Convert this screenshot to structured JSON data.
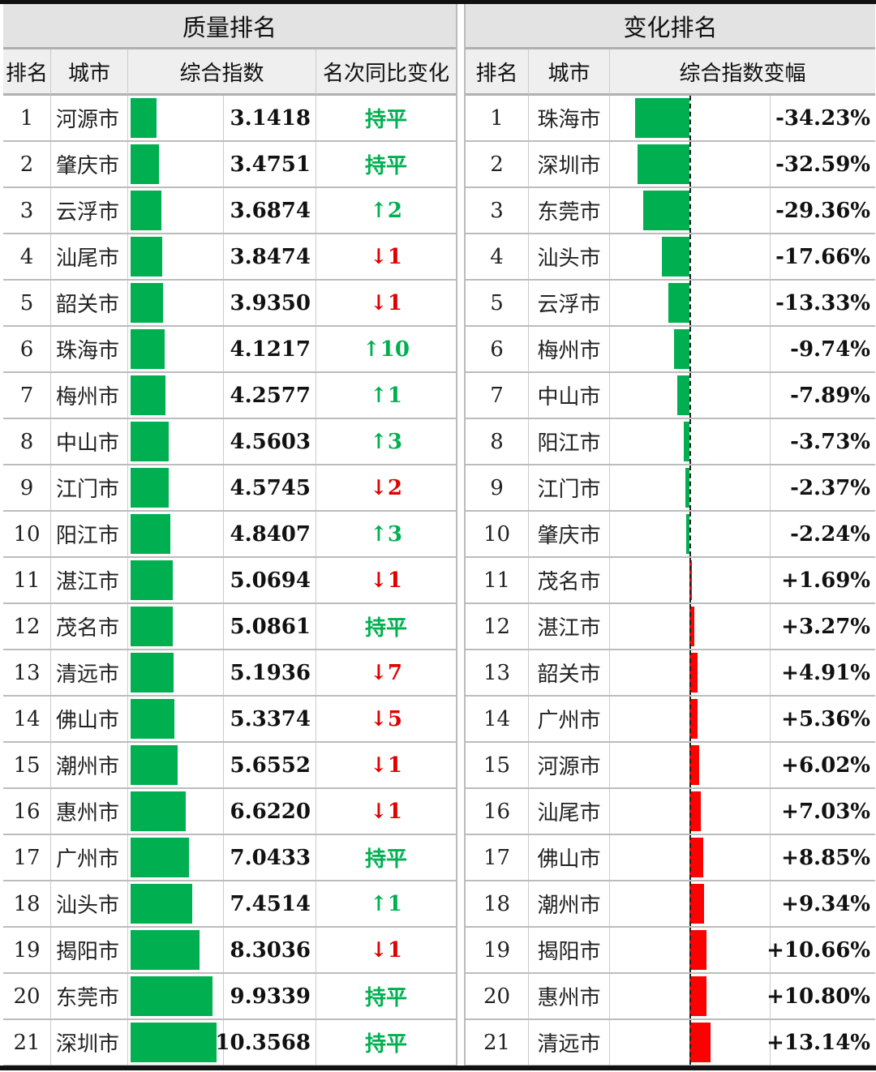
{
  "left": {
    "title": "质量排名",
    "headers": [
      "排名",
      "城市",
      "综合指数",
      "名次同比变化"
    ],
    "rows": [
      {
        "rank": "1",
        "city": "河源市",
        "value": 3.1418,
        "value_text": "3.1418",
        "change": "持平",
        "dir": "flat"
      },
      {
        "rank": "2",
        "city": "肇庆市",
        "value": 3.4751,
        "value_text": "3.4751",
        "change": "持平",
        "dir": "flat"
      },
      {
        "rank": "3",
        "city": "云浮市",
        "value": 3.6874,
        "value_text": "3.6874",
        "change": "↑2",
        "dir": "up"
      },
      {
        "rank": "4",
        "city": "汕尾市",
        "value": 3.8474,
        "value_text": "3.8474",
        "change": "↓1",
        "dir": "down"
      },
      {
        "rank": "5",
        "city": "韶关市",
        "value": 3.935,
        "value_text": "3.9350",
        "change": "↓1",
        "dir": "down"
      },
      {
        "rank": "6",
        "city": "珠海市",
        "value": 4.1217,
        "value_text": "4.1217",
        "change": "↑10",
        "dir": "up"
      },
      {
        "rank": "7",
        "city": "梅州市",
        "value": 4.2577,
        "value_text": "4.2577",
        "change": "↑1",
        "dir": "up"
      },
      {
        "rank": "8",
        "city": "中山市",
        "value": 4.5603,
        "value_text": "4.5603",
        "change": "↑3",
        "dir": "up"
      },
      {
        "rank": "9",
        "city": "江门市",
        "value": 4.5745,
        "value_text": "4.5745",
        "change": "↓2",
        "dir": "down"
      },
      {
        "rank": "10",
        "city": "阳江市",
        "value": 4.8407,
        "value_text": "4.8407",
        "change": "↑3",
        "dir": "up"
      },
      {
        "rank": "11",
        "city": "湛江市",
        "value": 5.0694,
        "value_text": "5.0694",
        "change": "↓1",
        "dir": "down"
      },
      {
        "rank": "12",
        "city": "茂名市",
        "value": 5.0861,
        "value_text": "5.0861",
        "change": "持平",
        "dir": "flat"
      },
      {
        "rank": "13",
        "city": "清远市",
        "value": 5.1936,
        "value_text": "5.1936",
        "change": "↓7",
        "dir": "down"
      },
      {
        "rank": "14",
        "city": "佛山市",
        "value": 5.3374,
        "value_text": "5.3374",
        "change": "↓5",
        "dir": "down"
      },
      {
        "rank": "15",
        "city": "潮州市",
        "value": 5.6552,
        "value_text": "5.6552",
        "change": "↓1",
        "dir": "down"
      },
      {
        "rank": "16",
        "city": "惠州市",
        "value": 6.622,
        "value_text": "6.6220",
        "change": "↓1",
        "dir": "down"
      },
      {
        "rank": "17",
        "city": "广州市",
        "value": 7.0433,
        "value_text": "7.0433",
        "change": "持平",
        "dir": "flat"
      },
      {
        "rank": "18",
        "city": "汕头市",
        "value": 7.4514,
        "value_text": "7.4514",
        "change": "↑1",
        "dir": "up"
      },
      {
        "rank": "19",
        "city": "揭阳市",
        "value": 8.3036,
        "value_text": "8.3036",
        "change": "↓1",
        "dir": "down"
      },
      {
        "rank": "20",
        "city": "东莞市",
        "value": 9.9339,
        "value_text": "9.9339",
        "change": "持平",
        "dir": "flat"
      },
      {
        "rank": "21",
        "city": "深圳市",
        "value": 10.3568,
        "value_text": "10.3568",
        "change": "持平",
        "dir": "flat"
      }
    ]
  },
  "right": {
    "title": "变化排名",
    "headers": [
      "排名",
      "城市",
      "综合指数变幅"
    ],
    "rows": [
      {
        "rank": "1",
        "city": "珠海市",
        "value": -34.23,
        "value_text": "-34.23%"
      },
      {
        "rank": "2",
        "city": "深圳市",
        "value": -32.59,
        "value_text": "-32.59%"
      },
      {
        "rank": "3",
        "city": "东莞市",
        "value": -29.36,
        "value_text": "-29.36%"
      },
      {
        "rank": "4",
        "city": "汕头市",
        "value": -17.66,
        "value_text": "-17.66%"
      },
      {
        "rank": "5",
        "city": "云浮市",
        "value": -13.33,
        "value_text": "-13.33%"
      },
      {
        "rank": "6",
        "city": "梅州市",
        "value": -9.74,
        "value_text": "-9.74%"
      },
      {
        "rank": "7",
        "city": "中山市",
        "value": -7.89,
        "value_text": "-7.89%"
      },
      {
        "rank": "8",
        "city": "阳江市",
        "value": -3.73,
        "value_text": "-3.73%"
      },
      {
        "rank": "9",
        "city": "江门市",
        "value": -2.37,
        "value_text": "-2.37%"
      },
      {
        "rank": "10",
        "city": "肇庆市",
        "value": -2.24,
        "value_text": "-2.24%"
      },
      {
        "rank": "11",
        "city": "茂名市",
        "value": 1.69,
        "value_text": "+1.69%"
      },
      {
        "rank": "12",
        "city": "湛江市",
        "value": 3.27,
        "value_text": "+3.27%"
      },
      {
        "rank": "13",
        "city": "韶关市",
        "value": 4.91,
        "value_text": "+4.91%"
      },
      {
        "rank": "14",
        "city": "广州市",
        "value": 5.36,
        "value_text": "+5.36%"
      },
      {
        "rank": "15",
        "city": "河源市",
        "value": 6.02,
        "value_text": "+6.02%"
      },
      {
        "rank": "16",
        "city": "汕尾市",
        "value": 7.03,
        "value_text": "+7.03%"
      },
      {
        "rank": "17",
        "city": "佛山市",
        "value": 8.85,
        "value_text": "+8.85%"
      },
      {
        "rank": "18",
        "city": "潮州市",
        "value": 9.34,
        "value_text": "+9.34%"
      },
      {
        "rank": "19",
        "city": "揭阳市",
        "value": 10.66,
        "value_text": "+10.66%"
      },
      {
        "rank": "20",
        "city": "惠州市",
        "value": 10.8,
        "value_text": "+10.80%"
      },
      {
        "rank": "21",
        "city": "清远市",
        "value": 13.14,
        "value_text": "+13.14%"
      }
    ]
  },
  "colors": {
    "positive_bar": "#00b050",
    "negative_bar": "#ff0000",
    "up": "#00b050",
    "down": "#e00000",
    "flat": "#00b050"
  }
}
